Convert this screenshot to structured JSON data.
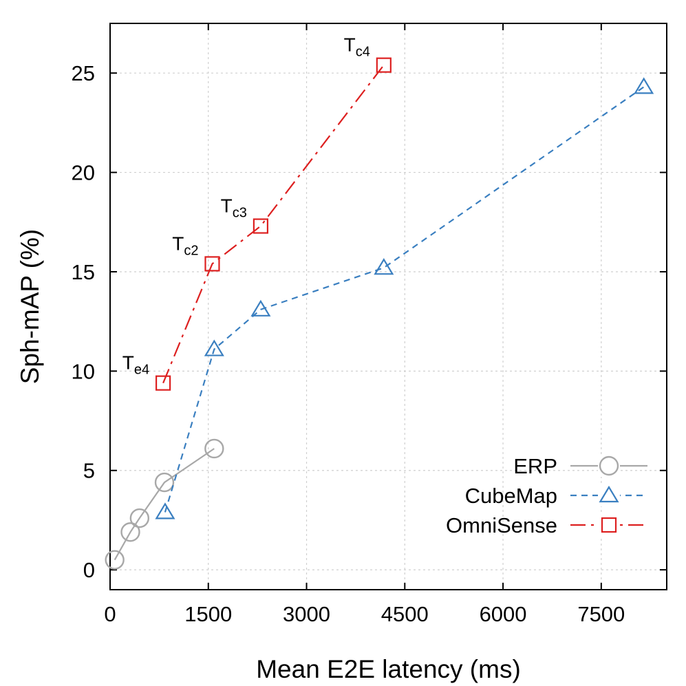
{
  "chart_data": {
    "type": "line",
    "xlabel": "Mean E2E latency (ms)",
    "ylabel": "Sph-mAP (%)",
    "xlim": [
      0,
      8500
    ],
    "ylim": [
      -1,
      27.5
    ],
    "xticks": [
      0,
      1500,
      3000,
      4500,
      6000,
      7500
    ],
    "yticks": [
      0,
      5,
      10,
      15,
      20,
      25
    ],
    "grid": true,
    "legend_position": "bottom-right",
    "series": [
      {
        "name": "ERP",
        "color": "#a8a8a8",
        "marker": "circle",
        "dash": "solid",
        "points": [
          {
            "x": 70,
            "y": 0.5
          },
          {
            "x": 310,
            "y": 1.9
          },
          {
            "x": 450,
            "y": 2.6
          },
          {
            "x": 830,
            "y": 4.4
          },
          {
            "x": 1590,
            "y": 6.1
          }
        ]
      },
      {
        "name": "CubeMap",
        "color": "#3a7fc0",
        "marker": "triangle",
        "dash": "dashed",
        "points": [
          {
            "x": 840,
            "y": 2.9
          },
          {
            "x": 1590,
            "y": 11.1
          },
          {
            "x": 2300,
            "y": 13.1
          },
          {
            "x": 4180,
            "y": 15.2
          },
          {
            "x": 8150,
            "y": 24.3
          }
        ]
      },
      {
        "name": "OmniSense",
        "color": "#dd2020",
        "marker": "square",
        "dash": "dashdot",
        "points": [
          {
            "x": 810,
            "y": 9.4
          },
          {
            "x": 1560,
            "y": 15.4
          },
          {
            "x": 2300,
            "y": 17.3
          },
          {
            "x": 4180,
            "y": 25.4
          }
        ]
      }
    ],
    "annotations": [
      {
        "base": "T",
        "sub": "e4",
        "x": 810,
        "y": 9.4
      },
      {
        "base": "T",
        "sub": "c2",
        "x": 1560,
        "y": 15.4
      },
      {
        "base": "T",
        "sub": "c3",
        "x": 2300,
        "y": 17.3
      },
      {
        "base": "T",
        "sub": "c4",
        "x": 4180,
        "y": 25.4
      }
    ]
  }
}
